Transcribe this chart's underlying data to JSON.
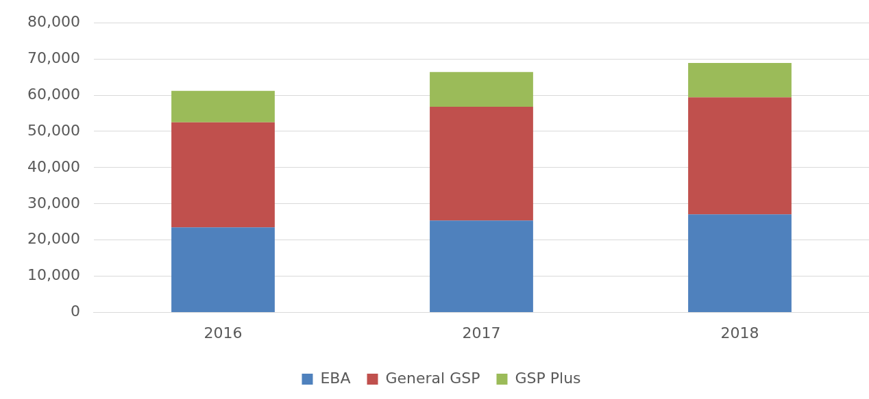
{
  "chart_data": {
    "type": "bar",
    "stacked": true,
    "categories": [
      "2016",
      "2017",
      "2018"
    ],
    "series": [
      {
        "name": "EBA",
        "color": "#4f81bd",
        "values": [
          23500,
          25400,
          27100
        ]
      },
      {
        "name": "General GSP",
        "color": "#c0504d",
        "values": [
          29000,
          31400,
          32300
        ]
      },
      {
        "name": "GSP Plus",
        "color": "#9bbb59",
        "values": [
          8700,
          9600,
          9500
        ]
      }
    ],
    "ylim": [
      0,
      80000
    ],
    "yticks": [
      0,
      {
        "value": 10000,
        "label": "10,000"
      },
      {
        "value": 20000,
        "label": "20,000"
      },
      {
        "value": 30000,
        "label": "30,000"
      },
      {
        "value": 40000,
        "label": "40,000"
      },
      {
        "value": 50000,
        "label": "50,000"
      },
      {
        "value": 60000,
        "label": "60,000"
      },
      {
        "value": 70000,
        "label": "70,000"
      },
      {
        "value": 80000,
        "label": "80,000"
      }
    ],
    "grid": "y",
    "legend": "bottom"
  }
}
